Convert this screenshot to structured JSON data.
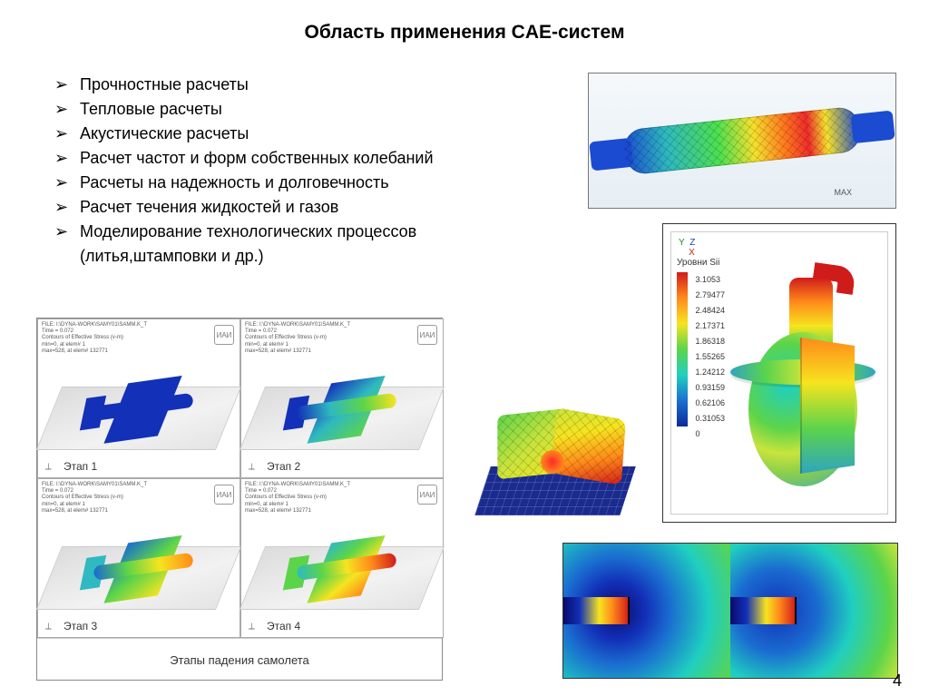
{
  "title": "Область применения CAE-систем",
  "bullets": [
    "Прочностные расчеты",
    "Тепловые расчеты",
    "Акустические расчеты",
    "Расчет частот и форм собственных колебаний",
    "Расчеты на надежность и долговечность",
    "Расчет течения жидкостей и газов",
    "Моделирование технологических процессов"
  ],
  "bullet_indent": "(литья,штамповки и др.)",
  "page_number": "4",
  "pipe": {
    "label_max": "MAX"
  },
  "vessel": {
    "legend_title": "Уровни Sii",
    "axes": {
      "x": "X",
      "y": "Y",
      "z": "Z"
    },
    "ticks": [
      "3.1053",
      "2.79477",
      "2.48424",
      "2.17371",
      "1.86318",
      "1.55265",
      "1.24212",
      "0.93159",
      "0.62106",
      "0.31053",
      "0"
    ],
    "colors": [
      "#d01b1b",
      "#ff8a1a",
      "#f6e41f",
      "#5cd44a",
      "#1fcfc0",
      "#1b6fd0",
      "#0a2a9c"
    ]
  },
  "aircraft": {
    "file_header": "FILE: I:\\DYNA-WORK\\SAMY01\\SAMM.K_T\nTime = 0.072\nContours of Effective Stress (v-m)\nmin=0, at elem# 1\nmax=528, at elem# 132771",
    "stages": [
      "Этап 1",
      "Этап 2",
      "Этап 3",
      "Этап 4"
    ],
    "badge": "ИАИ",
    "caption": "Этапы падения самолета",
    "triad": "⟂"
  },
  "cfd": {
    "palette": [
      "#0a0a6c",
      "#1230b8",
      "#1a6bd0",
      "#1fcfc0",
      "#5cd44a",
      "#c8e43c",
      "#f6e41f",
      "#ff8a1a",
      "#d01b1b"
    ]
  },
  "styling": {
    "title_fontsize_pt": 16,
    "bullet_fontsize_pt": 14,
    "page_bg": "#ffffff",
    "text_color": "#000000",
    "border_color": "#777777"
  }
}
